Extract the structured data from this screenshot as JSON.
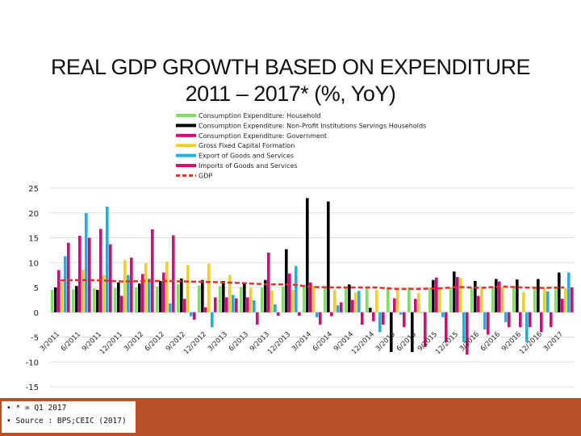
{
  "title_line1": "REAL GDP GROWTH BASED ON EXPENDITURE",
  "title_line2": "2011 – 2017* (%, YoY)",
  "footnotes": [
    "• * = Q1 2017",
    "• Source : BPS;CEIC (2017)"
  ],
  "chart_data": {
    "type": "bar",
    "ylim": [
      -15,
      25
    ],
    "yticks": [
      25,
      20,
      15,
      10,
      5,
      0,
      -5,
      -10,
      -15
    ],
    "legend_position": "top",
    "categories": [
      "3/2011",
      "6/2011",
      "9/2011",
      "12/2011",
      "3/2012",
      "6/2012",
      "9/2012",
      "12/2012",
      "3/2013",
      "6/2013",
      "9/2013",
      "12/2013",
      "3/2014",
      "6/2014",
      "9/2014",
      "12/2014",
      "3/2015",
      "6/2015",
      "9/2015",
      "12/2015",
      "3/2016",
      "6/2016",
      "9/2016",
      "12/2016",
      "3/2017"
    ],
    "series": [
      {
        "name": "Consumption Expenditure: Household",
        "color": "#7fe05a",
        "type": "bar",
        "values": [
          4.5,
          4.6,
          4.8,
          4.9,
          5.0,
          5.2,
          5.6,
          5.4,
          5.3,
          5.1,
          5.0,
          5.2,
          5.4,
          5.2,
          5.1,
          5.0,
          5.0,
          5.0,
          4.9,
          5.0,
          4.9,
          5.0,
          5.0,
          5.0,
          4.9
        ]
      },
      {
        "name": "Consumption Expenditure: Non-Profit Institutions Servings Households",
        "color": "#000000",
        "type": "bar",
        "values": [
          5.0,
          5.3,
          4.5,
          6.0,
          5.8,
          6.3,
          6.8,
          6.5,
          6.3,
          6.0,
          6.5,
          12.7,
          23.0,
          22.3,
          5.6,
          0.9,
          -8.0,
          -8.0,
          6.5,
          8.2,
          6.3,
          6.7,
          6.6,
          6.7,
          8.0
        ]
      },
      {
        "name": "Consumption Expenditure: Government",
        "color": "#e0007a",
        "type": "bar",
        "values": [
          8.5,
          15.4,
          16.8,
          3.3,
          7.7,
          8.0,
          2.7,
          1.0,
          3.0,
          3.0,
          12.0,
          7.8,
          6.0,
          -0.8,
          2.5,
          -1.8,
          2.8,
          2.7,
          7.0,
          7.1,
          3.3,
          6.2,
          -3.0,
          -4.0,
          2.7
        ]
      },
      {
        "name": "Gross Fixed Capital Formation",
        "color": "#f2d11a",
        "type": "bar",
        "values": [
          6.0,
          8.6,
          7.5,
          10.5,
          9.9,
          10.2,
          9.5,
          9.8,
          7.5,
          4.9,
          4.4,
          4.5,
          5.3,
          4.5,
          4.0,
          4.5,
          4.6,
          3.9,
          4.8,
          6.9,
          4.7,
          5.1,
          4.1,
          4.8,
          4.8
        ]
      },
      {
        "name": "Export of Goods and Services",
        "color": "#20b0e0",
        "type": "bar",
        "values": [
          11.3,
          20.0,
          21.3,
          7.5,
          6.8,
          1.8,
          -0.8,
          -3.0,
          3.5,
          2.4,
          1.6,
          9.3,
          -1.0,
          1.4,
          4.3,
          -4.0,
          -0.5,
          -0.1,
          -1.0,
          -6.0,
          -3.5,
          -2.0,
          -6.0,
          4.2,
          8.0
        ]
      },
      {
        "name": "Imports of Goods and Services",
        "color": "#d01070",
        "type": "bar",
        "values": [
          14.0,
          15.0,
          13.7,
          11.0,
          16.7,
          15.5,
          -1.5,
          3.0,
          2.8,
          -2.5,
          -0.7,
          -0.7,
          -2.5,
          2.0,
          -2.5,
          -2.5,
          -3.0,
          -7.0,
          -6.0,
          -8.5,
          -4.5,
          -3.0,
          -3.0,
          -3.0,
          5.0
        ]
      },
      {
        "name": "GDP",
        "color": "#e03030",
        "type": "line",
        "values": [
          6.4,
          6.5,
          6.4,
          6.2,
          6.3,
          6.3,
          6.2,
          6.1,
          6.0,
          5.8,
          5.6,
          5.6,
          5.1,
          5.0,
          5.0,
          5.0,
          4.7,
          4.7,
          4.8,
          5.1,
          4.9,
          5.2,
          5.0,
          4.9,
          5.0
        ]
      }
    ]
  }
}
